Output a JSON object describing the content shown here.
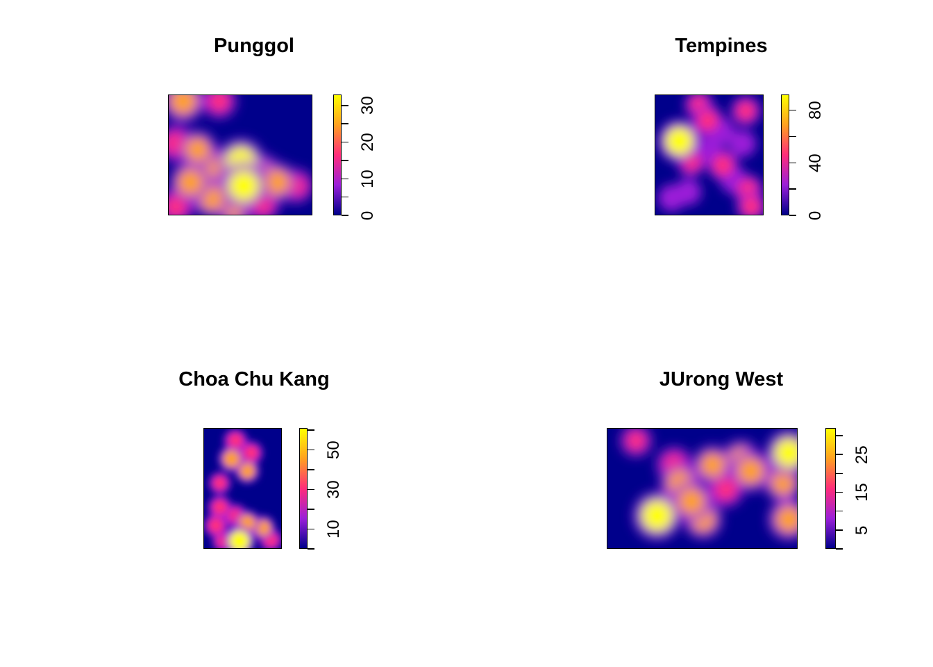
{
  "chart_data": [
    {
      "type": "heatmap",
      "title": "Punggol",
      "colorbar": {
        "range": [
          0,
          33
        ],
        "ticks": [
          0,
          10,
          20,
          30
        ],
        "minor_step": 5,
        "colors": [
          "#00008b",
          "#9b1fd8",
          "#ff2d7a",
          "#ffa020",
          "#ffff00"
        ]
      },
      "blobs": [
        {
          "x": 0.1,
          "y": 0.05,
          "v": 24
        },
        {
          "x": 0.35,
          "y": 0.05,
          "v": 12
        },
        {
          "x": 0.05,
          "y": 0.4,
          "v": 16
        },
        {
          "x": 0.2,
          "y": 0.45,
          "v": 18
        },
        {
          "x": 0.15,
          "y": 0.72,
          "v": 22
        },
        {
          "x": 0.3,
          "y": 0.58,
          "v": 17
        },
        {
          "x": 0.5,
          "y": 0.55,
          "v": 30
        },
        {
          "x": 0.52,
          "y": 0.75,
          "v": 33
        },
        {
          "x": 0.65,
          "y": 0.65,
          "v": 18
        },
        {
          "x": 0.75,
          "y": 0.72,
          "v": 20
        },
        {
          "x": 0.88,
          "y": 0.75,
          "v": 12
        },
        {
          "x": 0.3,
          "y": 0.85,
          "v": 20
        },
        {
          "x": 0.45,
          "y": 0.92,
          "v": 18
        },
        {
          "x": 0.05,
          "y": 0.92,
          "v": 14
        },
        {
          "x": 0.65,
          "y": 0.9,
          "v": 12
        }
      ]
    },
    {
      "type": "heatmap",
      "title": "Tempines",
      "colorbar": {
        "range": [
          0,
          92
        ],
        "ticks": [
          0,
          40,
          80
        ],
        "minor_step": 20,
        "colors": [
          "#00008b",
          "#9b1fd8",
          "#ff2d7a",
          "#ffa020",
          "#ffff00"
        ]
      },
      "blobs": [
        {
          "x": 0.22,
          "y": 0.38,
          "v": 92
        },
        {
          "x": 0.48,
          "y": 0.21,
          "v": 38
        },
        {
          "x": 0.83,
          "y": 0.13,
          "v": 30
        },
        {
          "x": 0.62,
          "y": 0.58,
          "v": 36
        },
        {
          "x": 0.33,
          "y": 0.55,
          "v": 28
        },
        {
          "x": 0.85,
          "y": 0.78,
          "v": 30
        },
        {
          "x": 0.4,
          "y": 0.08,
          "v": 24
        },
        {
          "x": 0.6,
          "y": 0.3,
          "v": 22
        },
        {
          "x": 0.72,
          "y": 0.7,
          "v": 22
        },
        {
          "x": 0.15,
          "y": 0.85,
          "v": 20
        },
        {
          "x": 0.88,
          "y": 0.92,
          "v": 30
        },
        {
          "x": 0.8,
          "y": 0.4,
          "v": 20
        },
        {
          "x": 0.3,
          "y": 0.8,
          "v": 18
        },
        {
          "x": 0.5,
          "y": 0.45,
          "v": 20
        }
      ]
    },
    {
      "type": "heatmap",
      "title": "Choa Chu Kang",
      "colorbar": {
        "range": [
          0,
          61
        ],
        "ticks": [
          10,
          30,
          50
        ],
        "minor_step": 10,
        "colors": [
          "#00008b",
          "#9b1fd8",
          "#ff2d7a",
          "#ffa020",
          "#ffff00"
        ]
      },
      "blobs": [
        {
          "x": 0.4,
          "y": 0.1,
          "v": 30
        },
        {
          "x": 0.6,
          "y": 0.2,
          "v": 28
        },
        {
          "x": 0.35,
          "y": 0.25,
          "v": 40
        },
        {
          "x": 0.55,
          "y": 0.35,
          "v": 32
        },
        {
          "x": 0.2,
          "y": 0.45,
          "v": 22
        },
        {
          "x": 0.2,
          "y": 0.65,
          "v": 30
        },
        {
          "x": 0.4,
          "y": 0.72,
          "v": 28
        },
        {
          "x": 0.15,
          "y": 0.8,
          "v": 30
        },
        {
          "x": 0.55,
          "y": 0.78,
          "v": 36
        },
        {
          "x": 0.75,
          "y": 0.82,
          "v": 32
        },
        {
          "x": 0.45,
          "y": 0.93,
          "v": 61
        },
        {
          "x": 0.85,
          "y": 0.92,
          "v": 26
        },
        {
          "x": 0.25,
          "y": 0.93,
          "v": 26
        }
      ]
    },
    {
      "type": "heatmap",
      "title": "JUrong West",
      "colorbar": {
        "range": [
          0,
          32
        ],
        "ticks": [
          5,
          15,
          25
        ],
        "minor_step": 5,
        "colors": [
          "#00008b",
          "#9b1fd8",
          "#ff2d7a",
          "#ffa020",
          "#ffff00"
        ]
      },
      "blobs": [
        {
          "x": 0.15,
          "y": 0.1,
          "v": 8
        },
        {
          "x": 0.25,
          "y": 0.7,
          "v": 22
        },
        {
          "x": 0.26,
          "y": 0.72,
          "v": 32
        },
        {
          "x": 0.38,
          "y": 0.45,
          "v": 20
        },
        {
          "x": 0.44,
          "y": 0.6,
          "v": 22
        },
        {
          "x": 0.55,
          "y": 0.3,
          "v": 18
        },
        {
          "x": 0.5,
          "y": 0.75,
          "v": 18
        },
        {
          "x": 0.62,
          "y": 0.5,
          "v": 14
        },
        {
          "x": 0.75,
          "y": 0.35,
          "v": 22
        },
        {
          "x": 0.7,
          "y": 0.25,
          "v": 16
        },
        {
          "x": 0.95,
          "y": 0.2,
          "v": 28
        },
        {
          "x": 0.92,
          "y": 0.45,
          "v": 16
        },
        {
          "x": 0.95,
          "y": 0.75,
          "v": 22
        },
        {
          "x": 0.35,
          "y": 0.3,
          "v": 14
        }
      ]
    }
  ]
}
